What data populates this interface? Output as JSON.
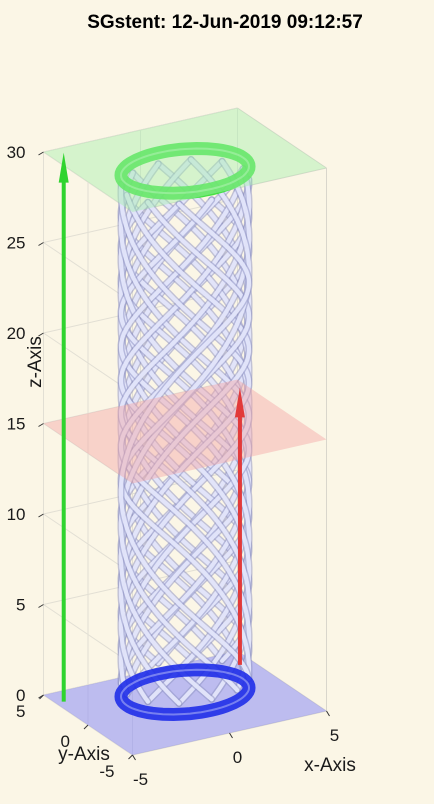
{
  "window": {
    "title": "SGstent: 12-Jun-2019 09:12:57"
  },
  "chart_data": {
    "type": "3d-surface",
    "title": "SGstent: 12-Jun-2019 09:12:57",
    "xlabel": "x-Axis",
    "ylabel": "y-Axis",
    "zlabel": "z-Axis",
    "xlim": [
      -5,
      5
    ],
    "ylim": [
      -5,
      5
    ],
    "zlim": [
      0,
      30
    ],
    "x_ticks": [
      "-5",
      "0",
      "5"
    ],
    "y_ticks": [
      "-5",
      "0",
      "5"
    ],
    "z_ticks": [
      "0",
      "5",
      "10",
      "15",
      "20",
      "25",
      "30"
    ],
    "grid": true,
    "stent": {
      "radius": 3,
      "height": 30,
      "helix_strands": 12,
      "surface_color": "#c9ccec"
    },
    "planes": [
      {
        "name": "bottom",
        "z": 0,
        "color": "#8a8cf5"
      },
      {
        "name": "middle",
        "z": 15,
        "color": "#f4a6a6"
      },
      {
        "name": "top",
        "z": 30,
        "color": "#a6f0ad"
      }
    ],
    "rings": [
      {
        "z": 0,
        "color": "#1f2ee8"
      },
      {
        "z": 30,
        "color": "#33e033"
      }
    ],
    "arrows": [
      {
        "color": "#2fd42f",
        "length": 30
      },
      {
        "color": "#e23a3a",
        "length": 15
      }
    ]
  }
}
